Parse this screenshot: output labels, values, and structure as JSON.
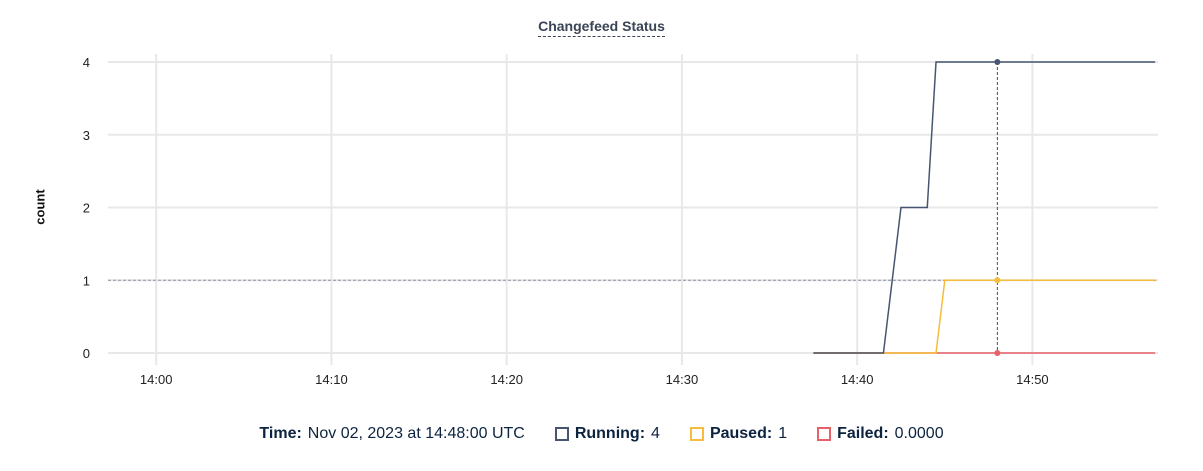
{
  "chart_data": {
    "type": "line",
    "title": "Changefeed Status",
    "ylabel": "count",
    "xlabel": "",
    "xlim": [
      "13:57:15",
      "14:57:10"
    ],
    "ylim": [
      0,
      4
    ],
    "yticks": [
      0,
      1,
      2,
      3,
      4
    ],
    "xticks": [
      "14:00",
      "14:10",
      "14:20",
      "14:30",
      "14:40",
      "14:50"
    ],
    "grid": true,
    "x": [
      "14:37:30",
      "14:41:30",
      "14:42:30",
      "14:44:00",
      "14:44:30",
      "14:45:00",
      "14:57:00"
    ],
    "series": [
      {
        "name": "Running",
        "color": "#475570",
        "values": [
          0,
          0,
          2,
          2,
          4,
          4,
          4
        ]
      },
      {
        "name": "Paused",
        "color": "#f6bd3c",
        "values": [
          0,
          0,
          0,
          0,
          0,
          1,
          1
        ]
      },
      {
        "name": "Failed",
        "color": "#e8606a",
        "values": [
          0,
          0,
          0,
          0,
          0,
          0,
          0
        ]
      }
    ],
    "hover": {
      "time": "14:48:00",
      "y_crosshair": 1
    }
  },
  "legend": {
    "time_label": "Time:",
    "time_value": "Nov 02, 2023 at 14:48:00 UTC",
    "items": [
      {
        "label": "Running:",
        "value": "4"
      },
      {
        "label": "Paused:",
        "value": "1"
      },
      {
        "label": "Failed:",
        "value": "0.0000"
      }
    ]
  }
}
